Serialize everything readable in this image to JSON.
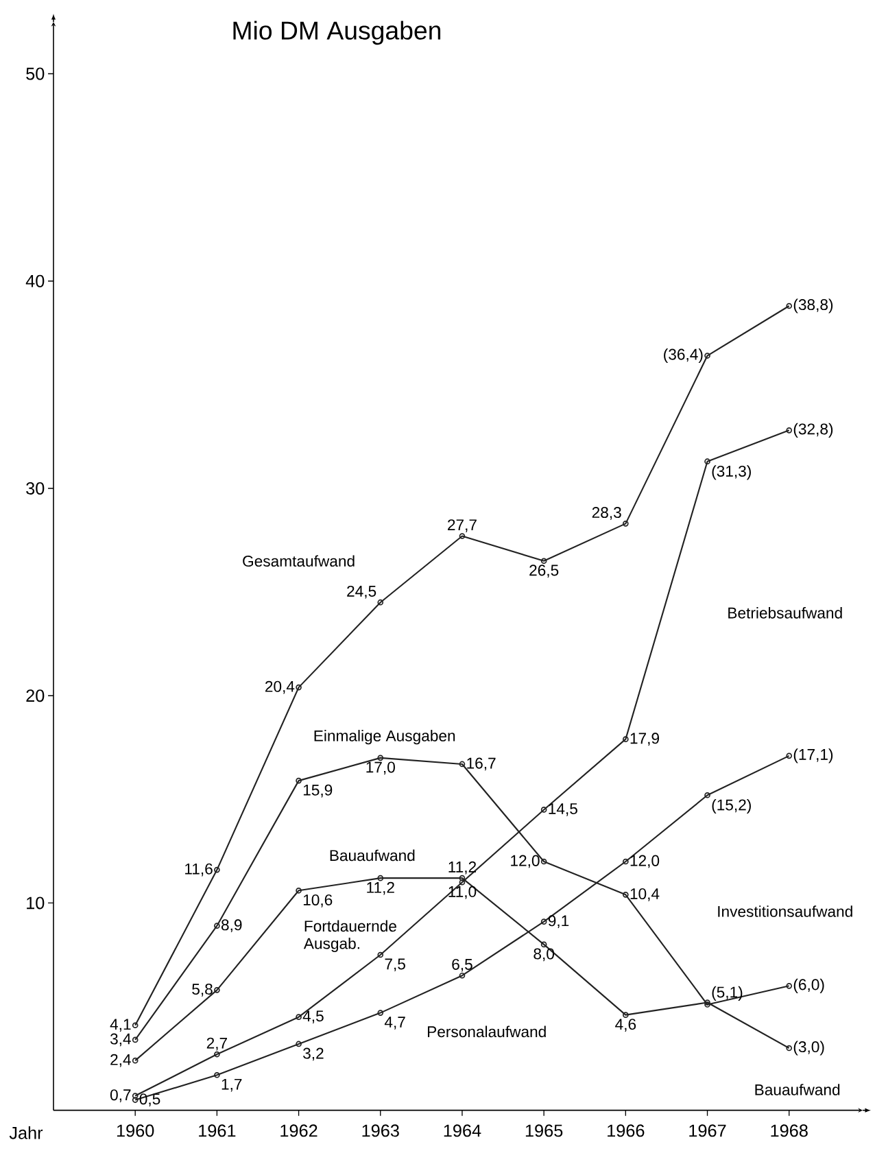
{
  "chart_data": {
    "type": "line",
    "title": "Mio DM Ausgaben",
    "xlabel": "Jahr",
    "x": [
      1960,
      1961,
      1962,
      1963,
      1964,
      1965,
      1966,
      1967,
      1968
    ],
    "xlim": [
      1959,
      1968.9
    ],
    "ylim": [
      0,
      52.5
    ],
    "xticks": [
      1960,
      1961,
      1962,
      1963,
      1964,
      1965,
      1966,
      1967,
      1968
    ],
    "yticks": [
      10,
      20,
      30,
      40,
      50
    ],
    "marker": "circle",
    "line_style": "solid",
    "legend": false,
    "grid": false,
    "series": [
      {
        "name": "Gesamtaufwand",
        "color": "#222222",
        "values": [
          4.1,
          11.6,
          20.4,
          24.5,
          27.7,
          26.5,
          28.3,
          36.4,
          38.8
        ],
        "value_labels": [
          "4,1",
          "11,6",
          "20,4",
          "24,5",
          "27,7",
          "26,5",
          "28,3",
          "(36,4)",
          "(38,8)"
        ]
      },
      {
        "name": "Einmalige Ausgaben",
        "color": "#222222",
        "values": [
          3.4,
          8.9,
          15.9,
          17.0,
          16.7,
          12.0,
          10.4,
          5.1,
          6.0
        ],
        "value_labels": [
          "3,4",
          "8,9",
          "15,9",
          "17,0",
          "16,7",
          "12,0",
          "10,4",
          "(5,1)",
          "(6,0)"
        ]
      },
      {
        "name": "Bauaufwand",
        "color": "#222222",
        "values": [
          2.4,
          5.8,
          10.6,
          11.2,
          11.2,
          8.0,
          4.6,
          5.2,
          3.0
        ],
        "value_labels": [
          "2,4",
          "5,8",
          "10,6",
          "11,2",
          "11,2",
          "8,0",
          "4,6",
          null,
          "(3,0)"
        ]
      },
      {
        "name": "Fortdauernde Ausgab.",
        "color": "#222222",
        "values": [
          0.7,
          2.7,
          4.5,
          7.5,
          11.0,
          14.5,
          17.9,
          31.3,
          32.8
        ],
        "value_labels": [
          "0,7",
          "2,7",
          "4,5",
          "7,5",
          "11,0",
          "14,5",
          "17,9",
          "(31,3)",
          "(32,8)"
        ]
      },
      {
        "name": "Personalaufwand",
        "color": "#222222",
        "values": [
          0.5,
          1.7,
          3.2,
          4.7,
          6.5,
          9.1,
          12.0,
          15.2,
          17.1
        ],
        "value_labels": [
          "0,5",
          "1,7",
          "3,2",
          "4,7",
          "6,5",
          "9,1",
          "12,0",
          "(15,2)",
          "(17,1)"
        ]
      }
    ],
    "annotations": [
      "Betriebsaufwand",
      "Investitionsaufwand",
      "Bauaufwand"
    ]
  }
}
